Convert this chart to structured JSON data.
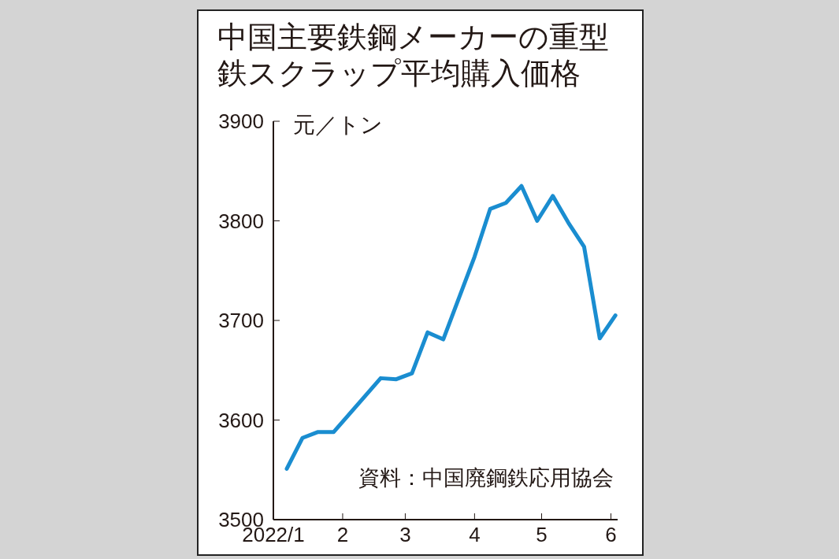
{
  "chart_data": {
    "type": "line",
    "title": "中国主要鉄鋼メーカーの重型鉄スクラップ平均購入価格",
    "ylabel": "元／トン",
    "annotations": [
      "資料：中国廃鋼鉄応用協会"
    ],
    "x": [
      "2022-01-07",
      "2022-01-14",
      "2022-01-21",
      "2022-01-28",
      "2022-02-18",
      "2022-02-25",
      "2022-03-04",
      "2022-03-11",
      "2022-03-18",
      "2022-04-01",
      "2022-04-08",
      "2022-04-15",
      "2022-04-22",
      "2022-04-29",
      "2022-05-06",
      "2022-05-13",
      "2022-05-20",
      "2022-05-27",
      "2022-06-03"
    ],
    "series": [
      {
        "color": "#1a8dd0",
        "values": [
          3551,
          3582,
          3588,
          3588,
          3642,
          3641,
          3647,
          3688,
          3681,
          3764,
          3812,
          3818,
          3835,
          3800,
          3825,
          3798,
          3774,
          3682,
          3705
        ]
      }
    ],
    "xlim": [
      "2022-01-01",
      "2022-06-04"
    ],
    "xticks": [
      {
        "value": "2022-01-01",
        "label": "2022/1"
      },
      {
        "value": "2022-02-01",
        "label": "2"
      },
      {
        "value": "2022-03-01",
        "label": "3"
      },
      {
        "value": "2022-04-01",
        "label": "4"
      },
      {
        "value": "2022-05-01",
        "label": "5"
      },
      {
        "value": "2022-06-01",
        "label": "6"
      }
    ],
    "ylim": [
      3500,
      3900
    ],
    "yticks": [
      3500,
      3600,
      3700,
      3800,
      3900
    ],
    "grid": false,
    "legend": false,
    "marker": "none",
    "line_style": "solid"
  }
}
